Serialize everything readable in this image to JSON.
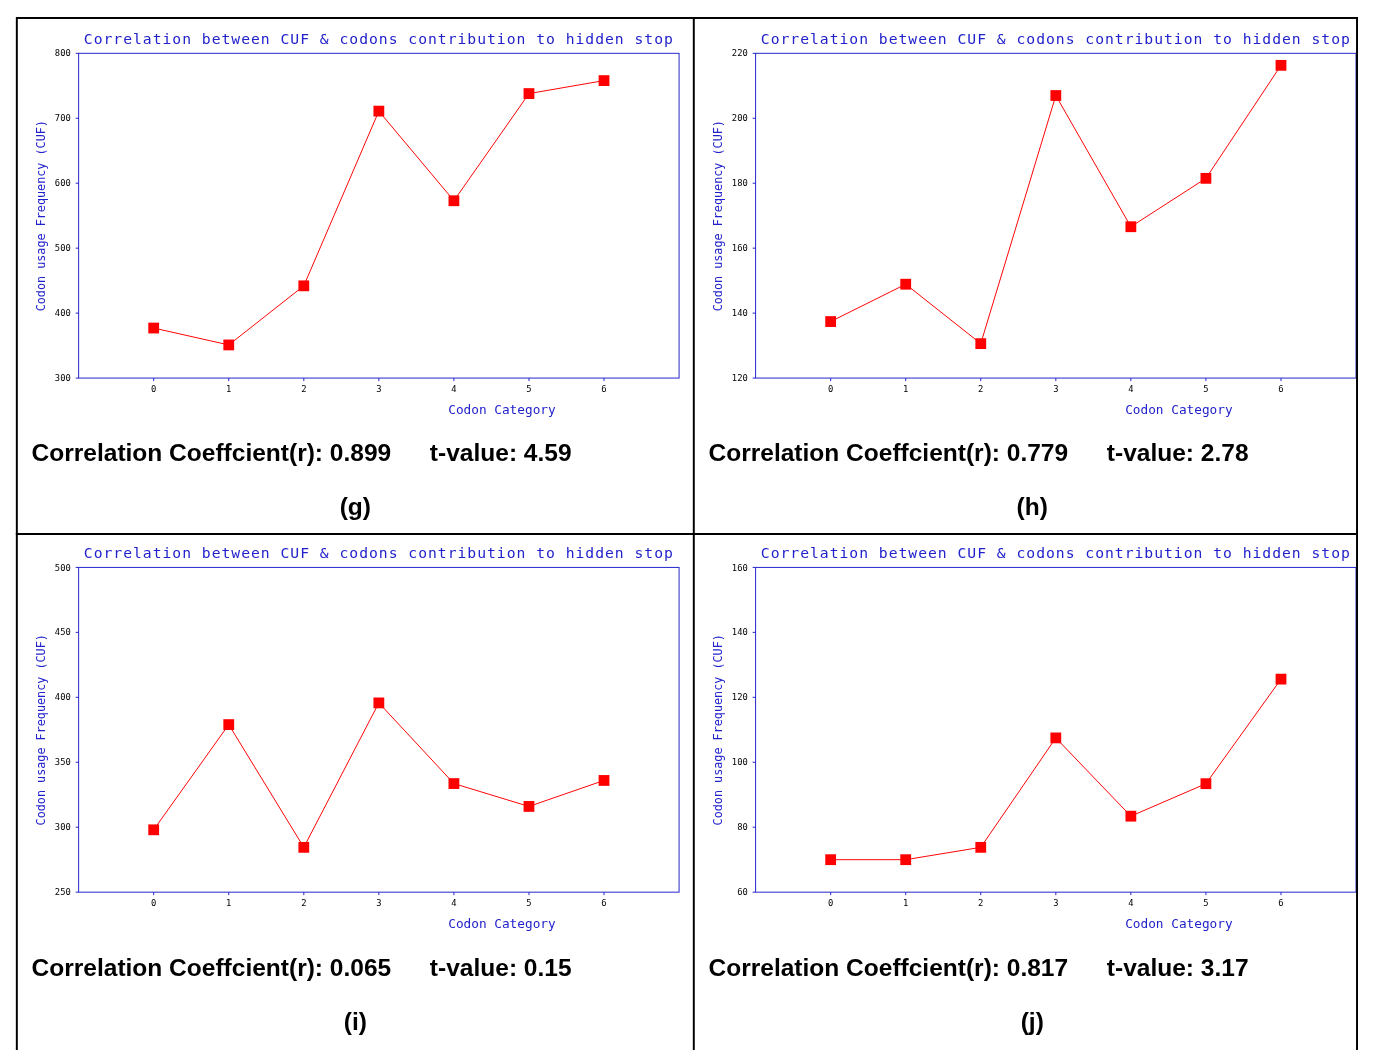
{
  "chart_data": [
    {
      "type": "line",
      "title": "Correlation between CUF & codons contribution to hidden stop",
      "xlabel": "Codon Category",
      "ylabel": "Codon usage Frequency (CUF)",
      "x": [
        0,
        1,
        2,
        3,
        4,
        5,
        6
      ],
      "xlim": [
        -1,
        7
      ],
      "xticks": [
        0,
        1,
        2,
        3,
        4,
        5,
        6
      ],
      "ylim": [
        300,
        800
      ],
      "yticks": [
        300,
        400,
        500,
        600,
        700,
        800
      ],
      "marker": "square",
      "grid": false,
      "series": [
        {
          "color": "#ff0000",
          "values": [
            377,
            351,
            442,
            711,
            573,
            738,
            758
          ]
        }
      ],
      "annotations": [
        "Correlation Coeffcient(r): 0.899",
        "t-value: 4.59",
        "(g)"
      ]
    },
    {
      "type": "line",
      "title": "Correlation between CUF & codons contribution to hidden stop",
      "xlabel": "Codon Category",
      "ylabel": "Codon usage Frequency (CUF)",
      "x": [
        0,
        1,
        2,
        3,
        4,
        5,
        6
      ],
      "xlim": [
        -1,
        7
      ],
      "xticks": [
        0,
        1,
        2,
        3,
        4,
        5,
        6
      ],
      "ylim": [
        120,
        220
      ],
      "yticks": [
        120,
        140,
        160,
        180,
        200,
        220
      ],
      "marker": "square",
      "grid": false,
      "series": [
        {
          "color": "#ff0000",
          "values": [
            137.4,
            148.9,
            130.6,
            207,
            166.6,
            181.5,
            216.3
          ]
        }
      ],
      "annotations": [
        "Correlation Coeffcient(r): 0.779",
        "t-value: 2.78",
        "(h)"
      ]
    },
    {
      "type": "line",
      "title": "Correlation between CUF & codons contribution to hidden stop",
      "xlabel": "Codon Category",
      "ylabel": "Codon usage Frequency (CUF)",
      "x": [
        0,
        1,
        2,
        3,
        4,
        5,
        6
      ],
      "xlim": [
        -1,
        7
      ],
      "xticks": [
        0,
        1,
        2,
        3,
        4,
        5,
        6
      ],
      "ylim": [
        250,
        500
      ],
      "yticks": [
        250,
        300,
        350,
        400,
        450,
        500
      ],
      "marker": "square",
      "grid": false,
      "series": [
        {
          "color": "#ff0000",
          "values": [
            298,
            379,
            284.5,
            395.7,
            333.6,
            316,
            336
          ]
        }
      ],
      "annotations": [
        "Correlation Coeffcient(r): 0.065",
        "t-value: 0.15",
        "(i)"
      ]
    },
    {
      "type": "line",
      "title": "Correlation between CUF & codons contribution to hidden stop",
      "xlabel": "Codon Category",
      "ylabel": "Codon usage Frequency (CUF)",
      "x": [
        0,
        1,
        2,
        3,
        4,
        5,
        6
      ],
      "xlim": [
        -1,
        7
      ],
      "xticks": [
        0,
        1,
        2,
        3,
        4,
        5,
        6
      ],
      "ylim": [
        60,
        160
      ],
      "yticks": [
        60,
        80,
        100,
        120,
        140,
        160
      ],
      "marker": "square",
      "grid": false,
      "series": [
        {
          "color": "#ff0000",
          "values": [
            70,
            70,
            73.8,
            107.5,
            83.4,
            93.4,
            125.6
          ]
        }
      ],
      "annotations": [
        "Correlation Coeffcient(r): 0.817",
        "t-value: 3.17",
        "(j)"
      ]
    }
  ]
}
